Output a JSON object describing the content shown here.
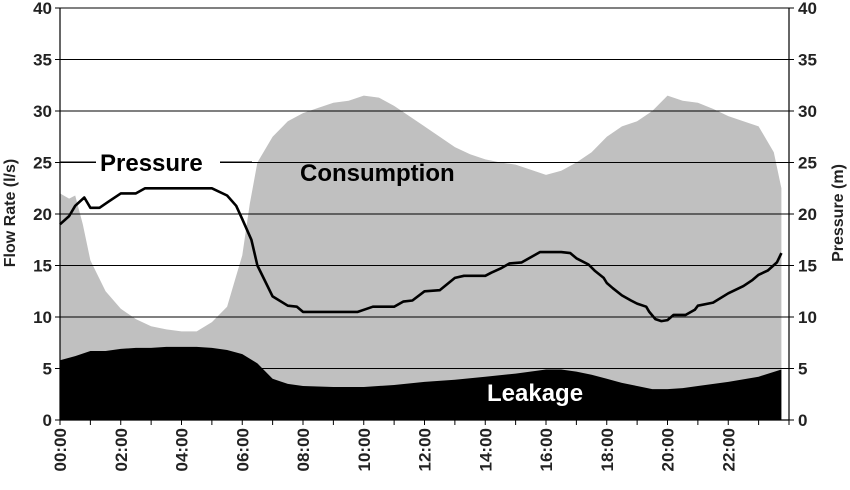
{
  "chart_data": {
    "type": "area",
    "xlabel": "",
    "ylabel": "Flow Rate (l/s)",
    "y2label": "Pressure (m)",
    "ylim": [
      0,
      40
    ],
    "y2lim": [
      0,
      40
    ],
    "yticks": [
      0,
      5,
      10,
      15,
      20,
      25,
      30,
      35,
      40
    ],
    "xlim": [
      0,
      24
    ],
    "xticks": [
      "00:00",
      "02:00",
      "04:00",
      "06:00",
      "08:00",
      "10:00",
      "12:00",
      "14:00",
      "16:00",
      "18:00",
      "20:00",
      "22:00"
    ],
    "grid": true,
    "annotations": {
      "pressure": "Pressure",
      "consumption": "Consumption",
      "leakage": "Leakage"
    },
    "colors": {
      "consumption": "#c0c0c0",
      "leakage": "#000000",
      "pressure": "#000000",
      "grid": "#000000"
    },
    "series": [
      {
        "name": "Consumption",
        "axis": "left",
        "points": [
          [
            0,
            22
          ],
          [
            0.3,
            21.5
          ],
          [
            0.5,
            21.8
          ],
          [
            0.75,
            19
          ],
          [
            1,
            15.5
          ],
          [
            1.5,
            12.5
          ],
          [
            2,
            10.8
          ],
          [
            2.5,
            9.8
          ],
          [
            3,
            9.1
          ],
          [
            3.5,
            8.8
          ],
          [
            4,
            8.6
          ],
          [
            4.5,
            8.6
          ],
          [
            5,
            9.5
          ],
          [
            5.5,
            11
          ],
          [
            5.75,
            13.5
          ],
          [
            6,
            16
          ],
          [
            6.25,
            21
          ],
          [
            6.5,
            25
          ],
          [
            7,
            27.5
          ],
          [
            7.5,
            29
          ],
          [
            8,
            29.8
          ],
          [
            8.5,
            30.3
          ],
          [
            9,
            30.8
          ],
          [
            9.5,
            31
          ],
          [
            10,
            31.5
          ],
          [
            10.5,
            31.3
          ],
          [
            11,
            30.5
          ],
          [
            11.5,
            29.5
          ],
          [
            12,
            28.5
          ],
          [
            12.5,
            27.5
          ],
          [
            13,
            26.5
          ],
          [
            13.5,
            25.8
          ],
          [
            14,
            25.3
          ],
          [
            14.5,
            25
          ],
          [
            15,
            24.8
          ],
          [
            15.5,
            24.3
          ],
          [
            16,
            23.8
          ],
          [
            16.5,
            24.2
          ],
          [
            17,
            25
          ],
          [
            17.5,
            26
          ],
          [
            18,
            27.5
          ],
          [
            18.5,
            28.5
          ],
          [
            19,
            29
          ],
          [
            19.5,
            30
          ],
          [
            20,
            31.5
          ],
          [
            20.5,
            31
          ],
          [
            21,
            30.8
          ],
          [
            21.5,
            30.2
          ],
          [
            22,
            29.5
          ],
          [
            22.5,
            29
          ],
          [
            23,
            28.5
          ],
          [
            23.5,
            26
          ],
          [
            23.75,
            22.5
          ]
        ]
      },
      {
        "name": "Leakage",
        "axis": "left",
        "points": [
          [
            0,
            5.8
          ],
          [
            0.5,
            6.2
          ],
          [
            1,
            6.7
          ],
          [
            1.5,
            6.7
          ],
          [
            2,
            6.9
          ],
          [
            2.5,
            7
          ],
          [
            3,
            7
          ],
          [
            3.5,
            7.1
          ],
          [
            4,
            7.1
          ],
          [
            4.5,
            7.1
          ],
          [
            5,
            7
          ],
          [
            5.5,
            6.8
          ],
          [
            6,
            6.4
          ],
          [
            6.5,
            5.5
          ],
          [
            7,
            4
          ],
          [
            7.5,
            3.5
          ],
          [
            8,
            3.3
          ],
          [
            9,
            3.2
          ],
          [
            10,
            3.2
          ],
          [
            11,
            3.4
          ],
          [
            12,
            3.7
          ],
          [
            13,
            3.9
          ],
          [
            14,
            4.2
          ],
          [
            15,
            4.5
          ],
          [
            16,
            4.9
          ],
          [
            16.5,
            4.9
          ],
          [
            17,
            4.7
          ],
          [
            17.5,
            4.4
          ],
          [
            18,
            4
          ],
          [
            18.5,
            3.6
          ],
          [
            19,
            3.3
          ],
          [
            19.5,
            3
          ],
          [
            20,
            3
          ],
          [
            20.5,
            3.1
          ],
          [
            21,
            3.3
          ],
          [
            22,
            3.7
          ],
          [
            23,
            4.2
          ],
          [
            23.75,
            4.9
          ]
        ]
      },
      {
        "name": "Pressure",
        "axis": "right",
        "points": [
          [
            0,
            19
          ],
          [
            0.3,
            19.8
          ],
          [
            0.5,
            20.8
          ],
          [
            0.8,
            21.6
          ],
          [
            1,
            20.6
          ],
          [
            1.3,
            20.6
          ],
          [
            1.6,
            21.2
          ],
          [
            2,
            22
          ],
          [
            2.5,
            22
          ],
          [
            2.8,
            22.5
          ],
          [
            5,
            22.5
          ],
          [
            5.5,
            21.8
          ],
          [
            5.8,
            20.8
          ],
          [
            6,
            19.5
          ],
          [
            6.3,
            17.5
          ],
          [
            6.5,
            15
          ],
          [
            6.8,
            13.2
          ],
          [
            7,
            12
          ],
          [
            7.5,
            11.1
          ],
          [
            7.8,
            11
          ],
          [
            8,
            10.5
          ],
          [
            9.8,
            10.5
          ],
          [
            10,
            10.7
          ],
          [
            10.3,
            11
          ],
          [
            11,
            11
          ],
          [
            11.3,
            11.5
          ],
          [
            11.6,
            11.6
          ],
          [
            12,
            12.5
          ],
          [
            12.5,
            12.6
          ],
          [
            13,
            13.8
          ],
          [
            13.3,
            14
          ],
          [
            14,
            14
          ],
          [
            14.2,
            14.3
          ],
          [
            14.5,
            14.7
          ],
          [
            14.8,
            15.2
          ],
          [
            15.2,
            15.3
          ],
          [
            15.5,
            15.8
          ],
          [
            15.8,
            16.3
          ],
          [
            16.5,
            16.3
          ],
          [
            16.8,
            16.2
          ],
          [
            17,
            15.7
          ],
          [
            17.4,
            15.1
          ],
          [
            17.6,
            14.5
          ],
          [
            17.9,
            13.8
          ],
          [
            18,
            13.3
          ],
          [
            18.2,
            12.8
          ],
          [
            18.5,
            12.1
          ],
          [
            18.8,
            11.6
          ],
          [
            19,
            11.3
          ],
          [
            19.3,
            11
          ],
          [
            19.4,
            10.5
          ],
          [
            19.6,
            9.8
          ],
          [
            19.8,
            9.6
          ],
          [
            20,
            9.7
          ],
          [
            20.2,
            10.2
          ],
          [
            20.6,
            10.2
          ],
          [
            20.9,
            10.7
          ],
          [
            21,
            11.1
          ],
          [
            21.5,
            11.4
          ],
          [
            22,
            12.3
          ],
          [
            22.5,
            13
          ],
          [
            22.8,
            13.6
          ],
          [
            23,
            14.1
          ],
          [
            23.3,
            14.5
          ],
          [
            23.6,
            15.3
          ],
          [
            23.75,
            16.2
          ]
        ]
      }
    ]
  }
}
